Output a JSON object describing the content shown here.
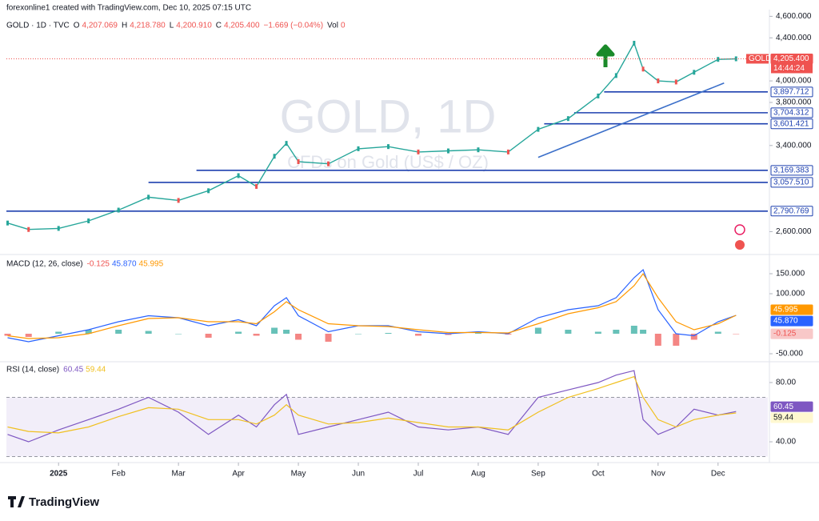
{
  "header": {
    "attribution": "forexonline1 created with TradingView.com, Dec 10, 2025 07:15 UTC",
    "logo": "TradingView"
  },
  "chart_data": [
    {
      "type": "line",
      "title": "GOLD · 1D · TVC",
      "ohlc": [
        {
          "key": "O",
          "value": "4,207.069"
        },
        {
          "key": "H",
          "value": "4,218.780"
        },
        {
          "key": "L",
          "value": "4,200.910"
        },
        {
          "key": "C",
          "value": "4,205.400"
        }
      ],
      "change": "−1.669 (−0.04%)",
      "volume": {
        "key": "Vol",
        "value": "0"
      },
      "watermark": "GOLD, 1D",
      "watermark_subtitle": "CFDs on Gold (US$ / OZ)",
      "x": [
        -0.85,
        -0.5,
        0,
        0.5,
        1.0,
        1.5,
        2.0,
        2.5,
        3.0,
        3.3,
        3.6,
        3.8,
        4.0,
        4.5,
        5.0,
        5.5,
        6.0,
        6.5,
        7.0,
        7.5,
        8.0,
        8.5,
        9.0,
        9.3,
        9.6,
        9.75,
        10.0,
        10.3,
        10.6,
        11.0,
        11.3
      ],
      "xlim": [
        -0.87,
        11.83
      ],
      "xticks": [
        {
          "value": 0,
          "label": "2025"
        },
        {
          "value": 1,
          "label": "Feb"
        },
        {
          "value": 2,
          "label": "Mar"
        },
        {
          "value": 3,
          "label": "Apr"
        },
        {
          "value": 4,
          "label": "May"
        },
        {
          "value": 5,
          "label": "Jun"
        },
        {
          "value": 6,
          "label": "Jul"
        },
        {
          "value": 7,
          "label": "Aug"
        },
        {
          "value": 8,
          "label": "Sep"
        },
        {
          "value": 9,
          "label": "Oct"
        },
        {
          "value": 10,
          "label": "Nov"
        },
        {
          "value": 11,
          "label": "Dec"
        }
      ],
      "series": [
        {
          "name": "GOLD",
          "color": "#26a69a",
          "values": [
            2680,
            2620,
            2630,
            2700,
            2800,
            2920,
            2890,
            2980,
            3120,
            3020,
            3300,
            3420,
            3250,
            3230,
            3370,
            3390,
            3340,
            3350,
            3360,
            3340,
            3550,
            3650,
            3860,
            4050,
            4350,
            4110,
            4000,
            3990,
            4080,
            4200,
            4205.4
          ],
          "last_label": "4,205.400"
        }
      ],
      "countdown": "14:44:24",
      "ylim": [
        2410,
        4640
      ],
      "yticks": [
        {
          "value": 2600,
          "label": "2,600.000"
        },
        {
          "value": 3400,
          "label": "3,400.000"
        },
        {
          "value": 3800,
          "label": "3,800.000"
        },
        {
          "value": 4000,
          "label": "4,000.000"
        },
        {
          "value": 4400,
          "label": "4,400.000"
        },
        {
          "value": 4600,
          "label": "4,600.000"
        }
      ],
      "levels": [
        {
          "value": 3897.712,
          "label": "3,897.712",
          "x_start": 9.1
        },
        {
          "value": 3704.312,
          "label": "3,704.312",
          "x_start": 8.6
        },
        {
          "value": 3601.421,
          "label": "3,601.421",
          "x_start": 8.1
        },
        {
          "value": 3169.383,
          "label": "3,169.383",
          "x_start": 2.3
        },
        {
          "value": 3057.51,
          "label": "3,057.510",
          "x_start": 1.5
        },
        {
          "value": 2790.769,
          "label": "2,790.769",
          "x_start": -0.87
        }
      ],
      "trendline": {
        "x": [
          8.0,
          11.1
        ],
        "values": [
          3290,
          3980
        ]
      },
      "grid": false
    },
    {
      "type": "macd",
      "title": "MACD (12, 26, close)",
      "histogram": {
        "values": [
          -5,
          -8,
          5,
          10,
          10,
          7,
          0,
          -10,
          5,
          -5,
          15,
          10,
          -15,
          -20,
          0,
          2,
          -5,
          -3,
          2,
          -2,
          15,
          10,
          5,
          10,
          20,
          10,
          -30,
          -30,
          -15,
          5,
          -0.125
        ],
        "last_label": "-0.125"
      },
      "series": [
        {
          "color": "#2962ff",
          "values": [
            -10,
            -20,
            -5,
            10,
            30,
            45,
            40,
            20,
            35,
            20,
            70,
            90,
            45,
            5,
            20,
            20,
            5,
            0,
            5,
            0,
            40,
            60,
            70,
            90,
            140,
            160,
            60,
            0,
            -5,
            30,
            45.87
          ],
          "last_label": "45.870"
        },
        {
          "color": "#ff9800",
          "values": [
            -5,
            -12,
            -10,
            0,
            20,
            38,
            40,
            30,
            30,
            25,
            55,
            80,
            60,
            25,
            20,
            18,
            10,
            3,
            3,
            2,
            25,
            50,
            65,
            80,
            120,
            150,
            90,
            30,
            10,
            25,
            45.995
          ],
          "last_label": "45.995"
        }
      ],
      "ylim": [
        -66,
        190
      ],
      "yticks": [
        {
          "value": -50,
          "label": "-50.000"
        },
        {
          "value": 100,
          "label": "100.000"
        },
        {
          "value": 150,
          "label": "150.000"
        }
      ]
    },
    {
      "type": "rsi",
      "title": "RSI (14, close)",
      "series": [
        {
          "color": "#7e57c2",
          "values": [
            45,
            40,
            48,
            55,
            62,
            70,
            60,
            45,
            58,
            50,
            65,
            72,
            45,
            50,
            55,
            60,
            50,
            48,
            50,
            45,
            70,
            75,
            80,
            85,
            88,
            55,
            45,
            50,
            62,
            58,
            60.45
          ],
          "last_label": "60.45"
        },
        {
          "color": "#f0c020",
          "values": [
            50,
            47,
            46,
            50,
            57,
            63,
            62,
            55,
            55,
            52,
            58,
            65,
            58,
            52,
            53,
            56,
            53,
            50,
            50,
            48,
            60,
            70,
            76,
            80,
            84,
            70,
            55,
            50,
            55,
            58,
            59.44
          ],
          "last_label": "59.44"
        }
      ],
      "band": [
        30,
        70
      ],
      "ylim": [
        27.6,
        92.4
      ],
      "yticks": [
        {
          "value": 40,
          "label": "40.00"
        },
        {
          "value": 80,
          "label": "80.00"
        }
      ]
    }
  ]
}
